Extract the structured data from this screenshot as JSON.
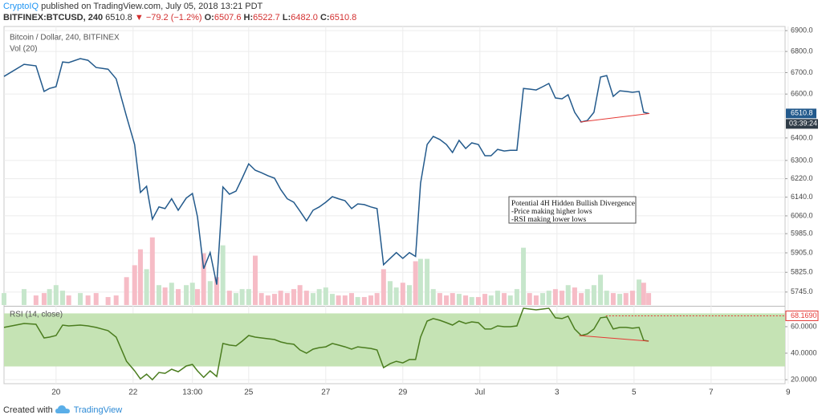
{
  "header": {
    "author": "CryptoIQ",
    "published": "published on TradingView.com, July 05, 2018 13:21 PDT",
    "symbol": "BITFINEX:BTCUSD, 240",
    "last": "6510.8",
    "arrow": "▼",
    "change": "−79.2 (−1.2%)",
    "o_label": "O:",
    "o": "6507.6",
    "h_label": "H:",
    "h": "6522.7",
    "l_label": "L:",
    "l": "6482.0",
    "c_label": "C:",
    "c": "6510.8"
  },
  "footer": {
    "created": "Created with",
    "brand": "TradingView"
  },
  "chart_data": [
    {
      "type": "line",
      "log_scale": true,
      "grid": true,
      "countdown": "03:39:24",
      "xlim": [
        18.65,
        38.92
      ],
      "ylim": [
        5693,
        6920
      ],
      "y2lim": [
        0,
        350
      ],
      "yticks": [
        {
          "value": 6900,
          "label": "6900.0"
        },
        {
          "value": 6800,
          "label": "6800.0"
        },
        {
          "value": 6700,
          "label": "6700.0"
        },
        {
          "value": 6600,
          "label": "6600.0"
        },
        {
          "value": 6400,
          "label": "6400.0"
        },
        {
          "value": 6300,
          "label": "6300.0"
        },
        {
          "value": 6220,
          "label": "6220.0"
        },
        {
          "value": 6140,
          "label": "6140.0"
        },
        {
          "value": 6060,
          "label": "6060.0"
        },
        {
          "value": 5985,
          "label": "5985.0"
        },
        {
          "value": 5905,
          "label": "5905.0"
        },
        {
          "value": 5825,
          "label": "5825.0"
        },
        {
          "value": 5745,
          "label": "5745.0"
        }
      ],
      "x": [
        18.65,
        19.17,
        19.48,
        19.69,
        19.83,
        20,
        20.17,
        20.33,
        20.63,
        20.83,
        21.04,
        21.35,
        21.56,
        21.83,
        22.04,
        22.19,
        22.35,
        22.5,
        22.67,
        22.83,
        23,
        23.17,
        23.38,
        23.54,
        23.67,
        23.83,
        24,
        24.17,
        24.33,
        24.5,
        24.67,
        24.83,
        25,
        25.17,
        25.33,
        25.5,
        25.67,
        25.83,
        26,
        26.17,
        26.33,
        26.5,
        26.67,
        26.83,
        27,
        27.17,
        27.33,
        27.5,
        27.67,
        27.83,
        28,
        28.17,
        28.33,
        28.5,
        28.67,
        28.83,
        29,
        29.17,
        29.33,
        29.46,
        29.63,
        29.79,
        29.96,
        30.13,
        30.29,
        30.46,
        30.63,
        30.79,
        30.96,
        31.13,
        31.29,
        31.46,
        31.63,
        31.79,
        31.96,
        32.13,
        32.29,
        32.46,
        32.63,
        32.79,
        32.96,
        33.13,
        33.29,
        33.46,
        33.63,
        33.79,
        33.96,
        34.13,
        34.29,
        34.46,
        34.63,
        34.79,
        34.96,
        35.13,
        35.25,
        35.38
      ],
      "series": [
        {
          "name": "Bitcoin / Dollar, 240, BITFINEX",
          "type": "line",
          "color": "#235a8c",
          "values": [
            6682,
            6739,
            6732,
            6612,
            6626,
            6634,
            6750,
            6747,
            6766,
            6758,
            6724,
            6716,
            6671,
            6497,
            6371,
            6160,
            6187,
            6046,
            6098,
            6091,
            6133,
            6084,
            6136,
            6156,
            6056,
            5840,
            5906,
            5775,
            6184,
            6153,
            6166,
            6222,
            6285,
            6257,
            6246,
            6233,
            6222,
            6173,
            6133,
            6118,
            6080,
            6039,
            6084,
            6098,
            6118,
            6142,
            6133,
            6125,
            6091,
            6111,
            6108,
            6098,
            6091,
            5856,
            5882,
            5906,
            5882,
            5906,
            5890,
            6200,
            6371,
            6407,
            6393,
            6371,
            6335,
            6389,
            6353,
            6378,
            6371,
            6321,
            6321,
            6349,
            6342,
            6345,
            6345,
            6626,
            6623,
            6619,
            6634,
            6649,
            6582,
            6578,
            6597,
            6516,
            6472,
            6479,
            6516,
            6679,
            6686,
            6589,
            6615,
            6612,
            6608,
            6612,
            6516,
            6510.8
          ]
        },
        {
          "name": "Vol (20)",
          "type": "bar",
          "axis": "y2",
          "up_color": "#c6e6cb",
          "down_color": "#f6bcc6",
          "values": [
            15,
            20,
            12,
            15,
            20,
            25,
            18,
            12,
            15,
            12,
            15,
            10,
            12,
            35,
            50,
            70,
            45,
            85,
            25,
            22,
            28,
            20,
            25,
            28,
            20,
            65,
            30,
            35,
            75,
            18,
            15,
            20,
            20,
            62,
            15,
            12,
            14,
            18,
            15,
            20,
            25,
            18,
            15,
            20,
            22,
            14,
            12,
            12,
            15,
            10,
            10,
            12,
            15,
            45,
            30,
            22,
            28,
            25,
            55,
            58,
            58,
            20,
            15,
            12,
            15,
            14,
            12,
            10,
            10,
            14,
            12,
            18,
            15,
            12,
            20,
            72,
            15,
            12,
            15,
            18,
            20,
            18,
            25,
            22,
            15,
            20,
            25,
            38,
            18,
            15,
            14,
            15,
            18,
            32,
            28,
            15
          ]
        }
      ],
      "trendlines": [
        {
          "color": "#e53935",
          "x": [
            33.6,
            35.4
          ],
          "values": [
            6472,
            6510.8
          ]
        }
      ],
      "annotation": [
        "Potential 4H Hidden Bullish Divergence",
        "-Price making higher lows",
        "-RSI making lower lows"
      ]
    },
    {
      "type": "line",
      "title": "RSI (14, close)",
      "grid": true,
      "band": [
        30,
        70
      ],
      "band_color": "#c5e3b4",
      "xlim": [
        18.65,
        38.92
      ],
      "ylim": [
        17,
        74.5
      ],
      "xticks": [
        20,
        22,
        {
          "value": 23.54,
          "label": "13:00"
        },
        25,
        27,
        29,
        {
          "value": 31,
          "label": "Jul"
        },
        {
          "value": 33,
          "label": "3"
        },
        {
          "value": 35,
          "label": "5"
        },
        {
          "value": 37,
          "label": "7"
        },
        {
          "value": 39,
          "label": "9"
        }
      ],
      "yticks": [
        {
          "value": 60,
          "label": "60.0000"
        },
        {
          "value": 40,
          "label": "40.0000"
        },
        {
          "value": 20,
          "label": "20.0000"
        }
      ],
      "marker": {
        "value": 68.169,
        "label": "68.1690",
        "x": 34.27,
        "color": "#e53935"
      },
      "x": [
        18.65,
        19.17,
        19.48,
        19.69,
        19.83,
        20,
        20.17,
        20.33,
        20.63,
        20.83,
        21.04,
        21.35,
        21.56,
        21.83,
        22.04,
        22.19,
        22.35,
        22.5,
        22.67,
        22.83,
        23,
        23.17,
        23.38,
        23.54,
        23.67,
        23.83,
        24,
        24.17,
        24.33,
        24.5,
        24.67,
        24.83,
        25,
        25.17,
        25.33,
        25.5,
        25.67,
        25.83,
        26,
        26.17,
        26.33,
        26.5,
        26.67,
        26.83,
        27,
        27.17,
        27.33,
        27.5,
        27.67,
        27.83,
        28,
        28.17,
        28.33,
        28.5,
        28.67,
        28.83,
        29,
        29.17,
        29.33,
        29.46,
        29.63,
        29.79,
        29.96,
        30.13,
        30.29,
        30.46,
        30.63,
        30.79,
        30.96,
        31.13,
        31.29,
        31.46,
        31.63,
        31.79,
        31.96,
        32.13,
        32.29,
        32.46,
        32.63,
        32.79,
        32.96,
        33.13,
        33.29,
        33.46,
        33.63,
        33.79,
        33.96,
        34.13,
        34.29,
        34.46,
        34.63,
        34.79,
        34.96,
        35.13,
        35.25,
        35.38
      ],
      "series": [
        {
          "name": "RSI",
          "type": "line",
          "color": "#4b7d1f",
          "values": [
            59.4,
            62.4,
            61.8,
            51.5,
            52.1,
            53.3,
            61.2,
            60.6,
            61.2,
            60.6,
            59.4,
            57,
            52.1,
            33.9,
            26.7,
            20.6,
            24.2,
            20,
            25.5,
            24.8,
            27.9,
            26,
            30.3,
            31.5,
            26.7,
            21.8,
            26.7,
            22.4,
            47.3,
            46.1,
            45.5,
            49.1,
            53.3,
            52.1,
            51.5,
            50.9,
            50.3,
            48.5,
            47.3,
            46.7,
            42.4,
            40,
            43,
            44.2,
            44.8,
            47.3,
            46.1,
            44.8,
            43,
            44.8,
            44.2,
            43.6,
            42.4,
            29.1,
            32.1,
            33.9,
            32.7,
            35.2,
            35.2,
            52.1,
            64.2,
            66.1,
            64.8,
            63,
            61.2,
            64.2,
            62.4,
            63.6,
            63,
            58.2,
            58.2,
            60.6,
            60,
            60,
            60.6,
            73.9,
            73.3,
            72.7,
            73.3,
            73.9,
            66.7,
            66.1,
            67.9,
            58.2,
            53.3,
            54.5,
            58.2,
            66.7,
            67.3,
            58.2,
            59.4,
            59.4,
            58.8,
            59.4,
            49.7,
            49.1
          ]
        }
      ],
      "trendlines": [
        {
          "color": "#e53935",
          "x": [
            33.58,
            35.38
          ],
          "values": [
            53.3,
            49.1
          ]
        }
      ]
    }
  ]
}
